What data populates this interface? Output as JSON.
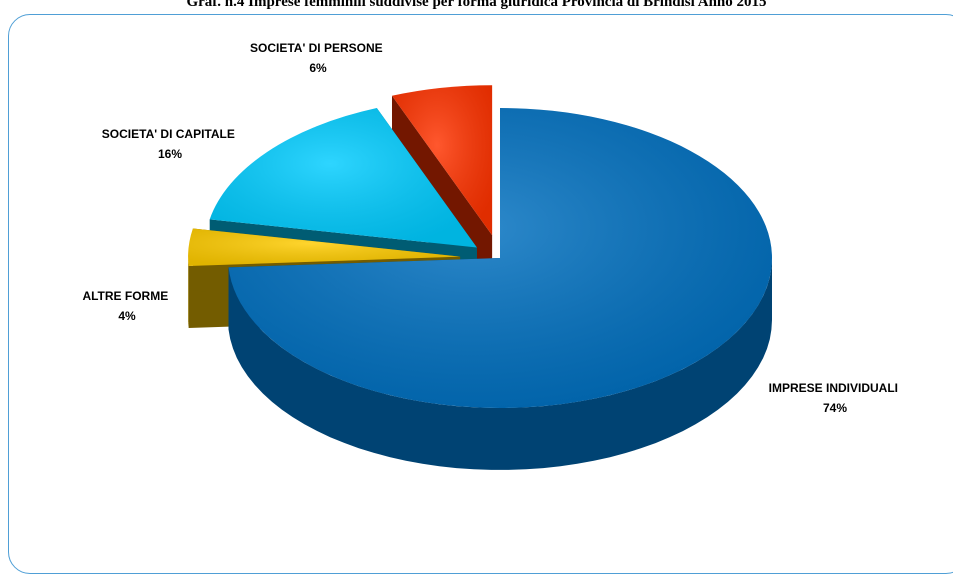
{
  "chart_data": {
    "type": "pie",
    "title": "Graf. n.4 Imprese femminili suddivise per forma giuridica Provincia di Brindisi Anno 2015",
    "slices": [
      {
        "label": "IMPRESE INDIVIDUALI",
        "value": 74,
        "value_label": "74%",
        "color": "#0070c0"
      },
      {
        "label": "ALTRE FORME",
        "value": 4,
        "value_label": "4%",
        "color": "#ffcc00"
      },
      {
        "label": "SOCIETA' DI CAPITALE",
        "value": 16,
        "value_label": "16%",
        "color": "#00ccff"
      },
      {
        "label": "SOCIETA' DI PERSONE",
        "value": 6,
        "value_label": "6%",
        "color": "#ff3300"
      }
    ],
    "style": "3d-exploded"
  }
}
